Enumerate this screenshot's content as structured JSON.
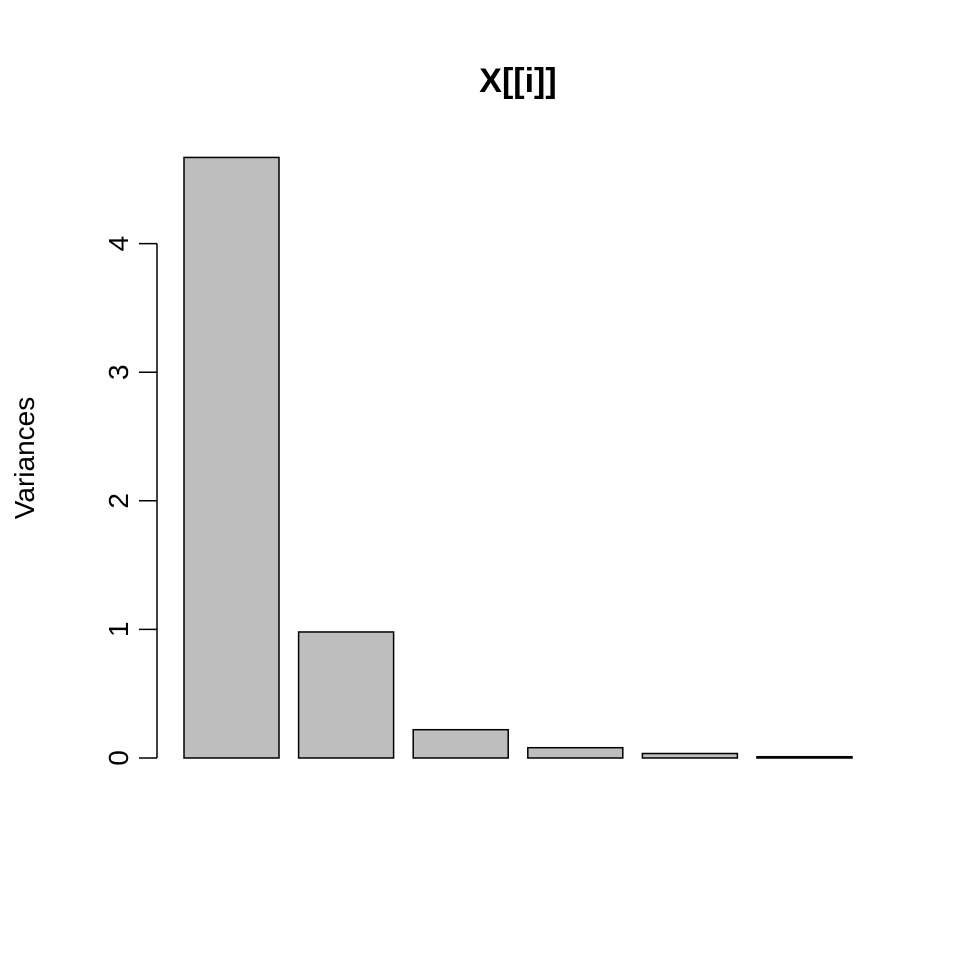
{
  "chart_data": {
    "type": "bar",
    "title": "X[[i]]",
    "xlabel": "",
    "ylabel": "Variances",
    "categories": [
      "",
      "",
      "",
      "",
      "",
      ""
    ],
    "values": [
      4.67,
      0.98,
      0.22,
      0.08,
      0.035,
      0.01
    ],
    "ylim": [
      0,
      4.67
    ],
    "yticks": [
      0,
      1,
      2,
      3,
      4
    ],
    "ytick_labels": [
      "0",
      "1",
      "2",
      "3",
      "4"
    ],
    "bar_color": "#bebebe",
    "grid": false
  }
}
